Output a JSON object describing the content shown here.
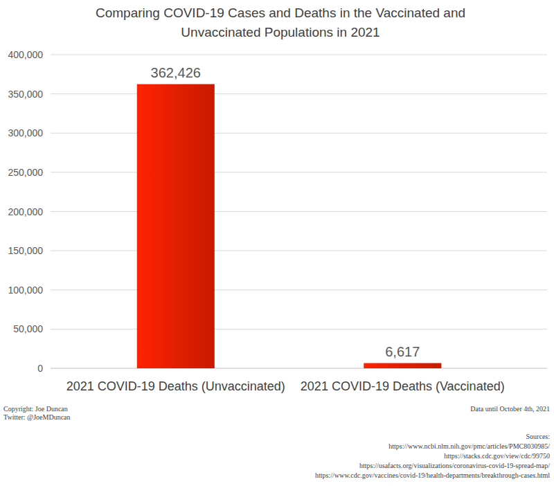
{
  "chart_data": {
    "type": "bar",
    "title": [
      "Comparing COVID-19 Cases and Deaths in the Vaccinated and",
      "Unvaccinated Populations in 2021"
    ],
    "categories": [
      "2021 COVID-19 Deaths (Unvaccinated)",
      "2021 COVID-19 Deaths (Vaccinated)"
    ],
    "values": [
      362426,
      6617
    ],
    "value_labels": [
      "362,426",
      "6,617"
    ],
    "data_labels": true,
    "color": "#ff2200",
    "ylim": [
      0,
      400000
    ],
    "yticks": [
      0,
      {
        "value": 50000,
        "label": "50,000"
      },
      {
        "value": 100000,
        "label": "100,000"
      },
      {
        "value": 150000,
        "label": "150,000"
      },
      {
        "value": 200000,
        "label": "200,000"
      },
      {
        "value": 250000,
        "label": "250,000"
      },
      {
        "value": 300000,
        "label": "300,000"
      },
      {
        "value": 350000,
        "label": "350,000"
      },
      {
        "value": 400000,
        "label": "400,000"
      }
    ],
    "grid": true,
    "footer_left": [
      "Copyright: Joe Duncan",
      "Twitter: @JoeMDuncan"
    ],
    "footer_right": "Data until October 4th, 2021",
    "sources_title": "Sources:",
    "sources": [
      "https://www.ncbi.nlm.nih.gov/pmc/articles/PMC8030985/",
      "https://stacks.cdc.gov/view/cdc/99750",
      "https://usafacts.org/visualizations/coronavirus-covid-19-spread-map/",
      "https://www.cdc.gov/vaccines/covid-19/health-departments/breakthrough-cases.html"
    ]
  }
}
